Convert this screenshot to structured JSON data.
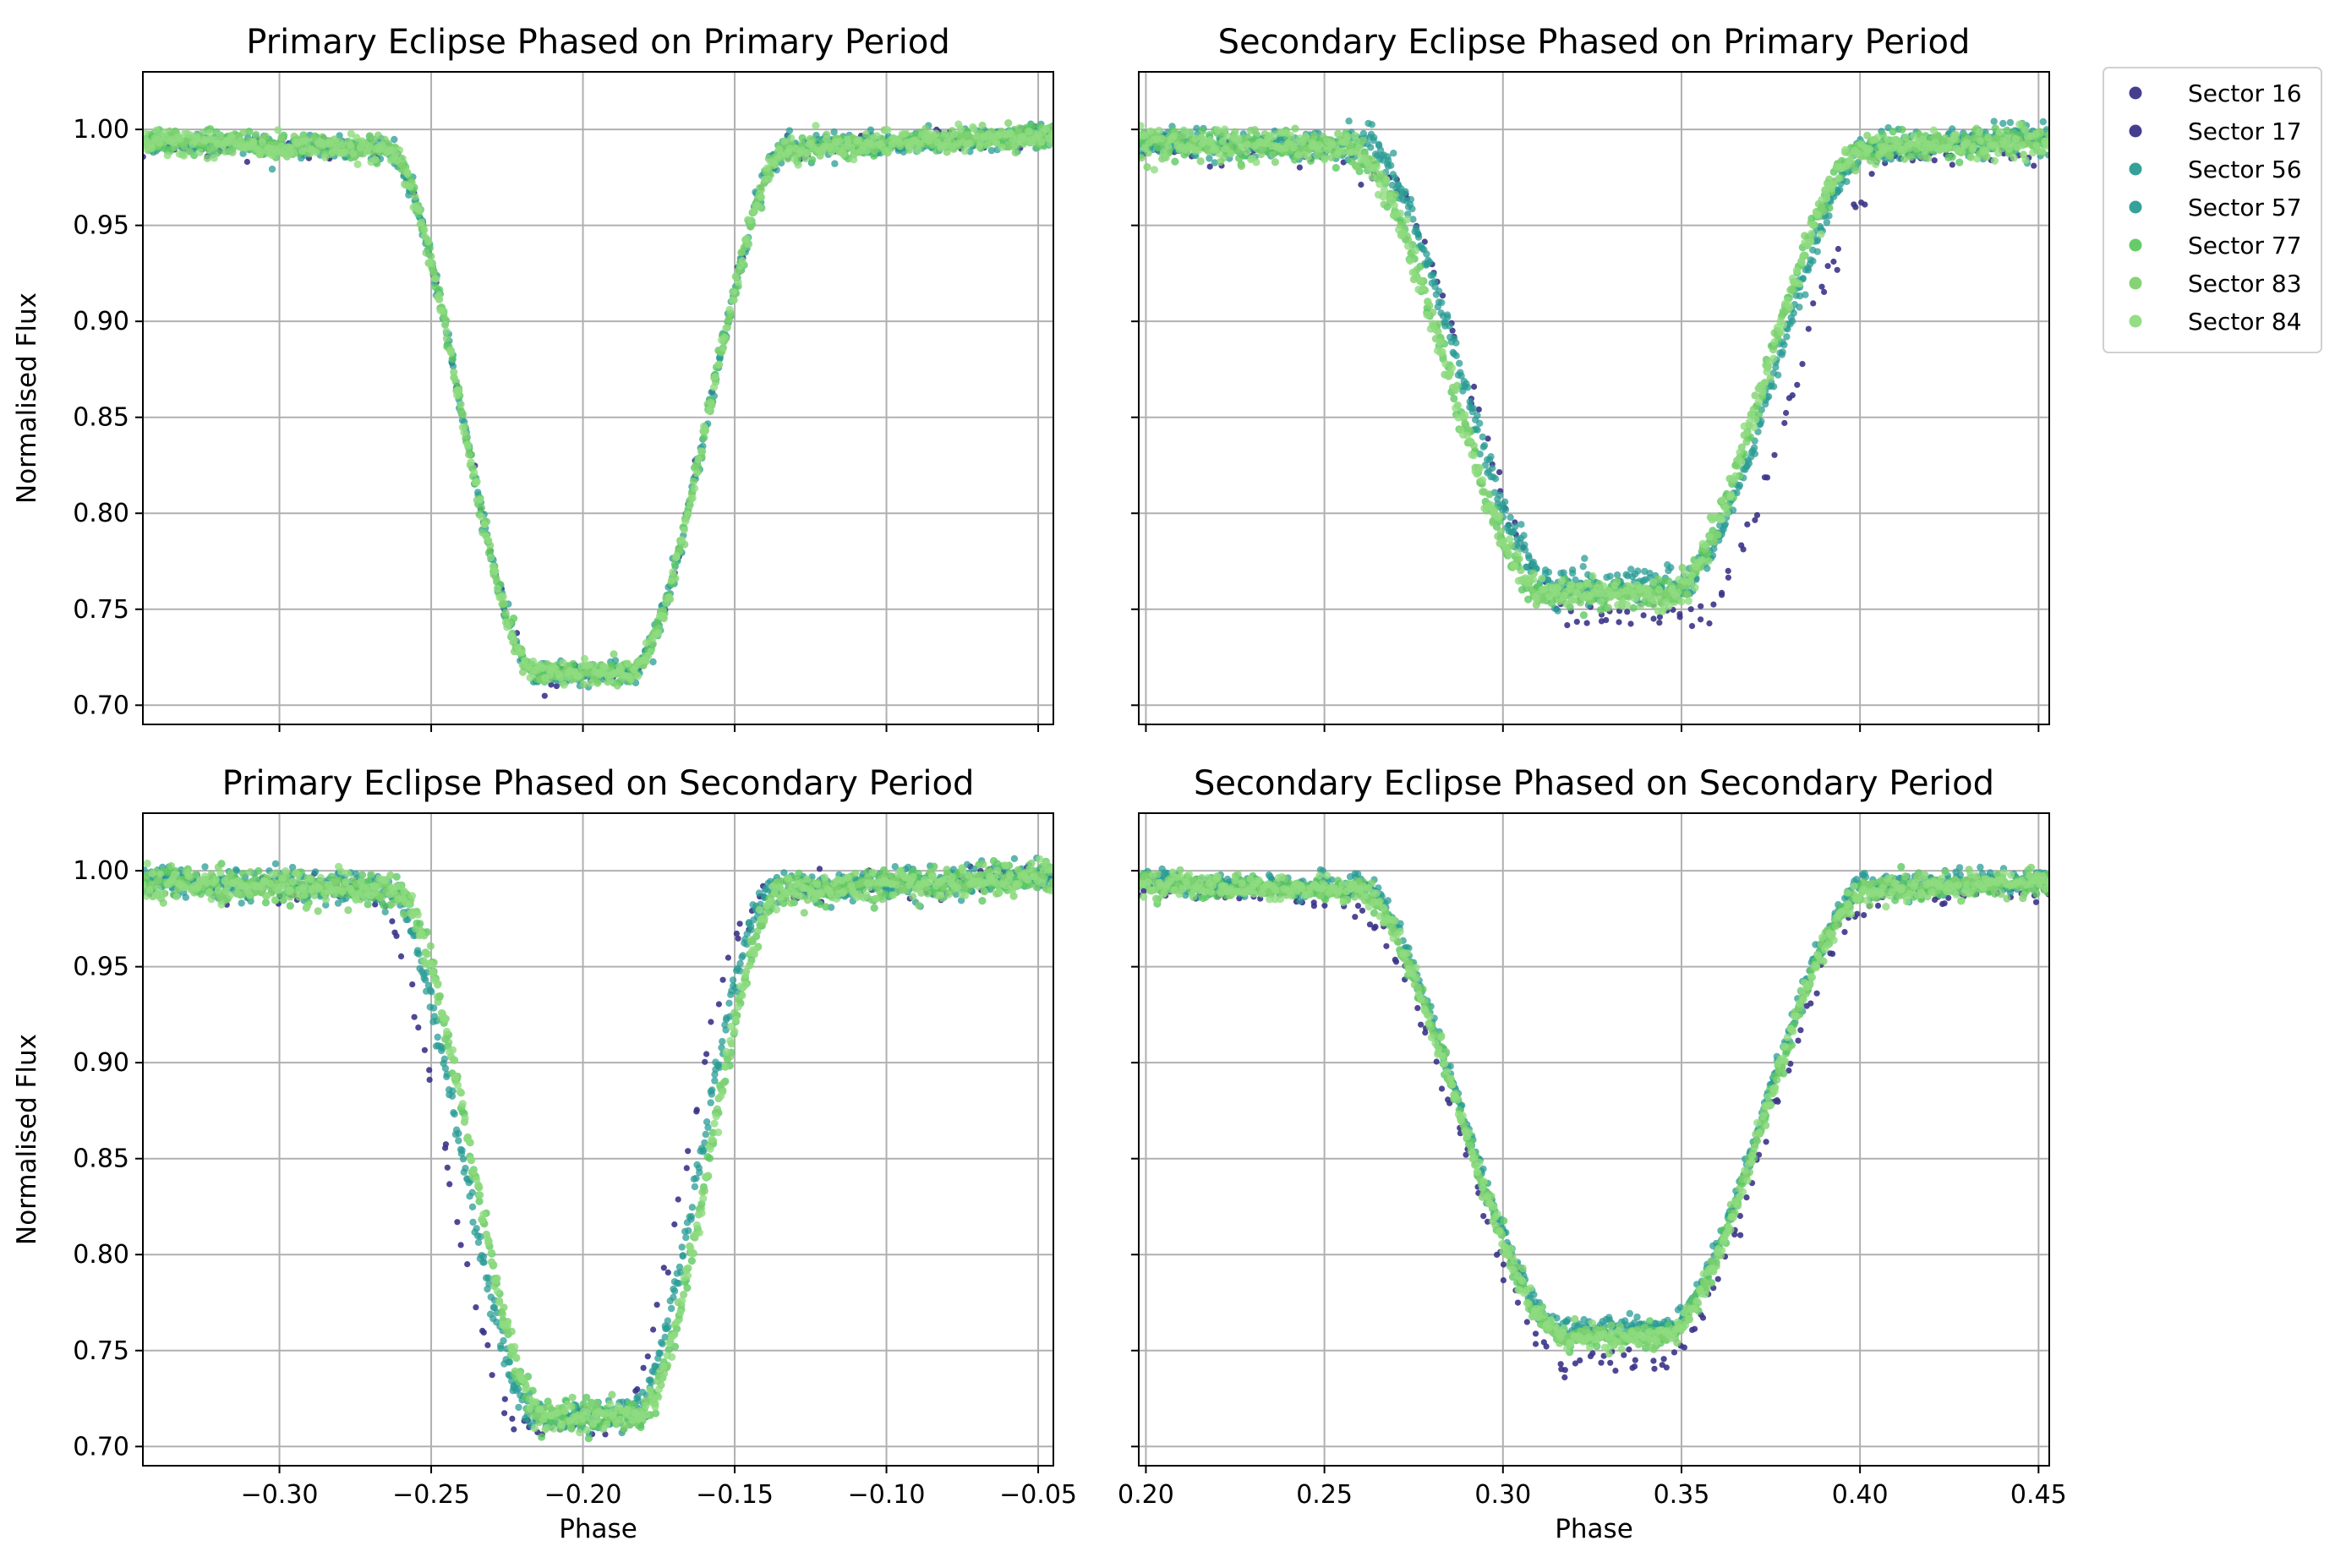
{
  "chart_data": [
    {
      "type": "scatter",
      "title": "Primary Eclipse Phased on Primary Period",
      "xlabel": "",
      "ylabel": "Normalised Flux",
      "xlim": [
        -0.345,
        -0.045
      ],
      "ylim": [
        0.69,
        1.03
      ],
      "xticks": [
        -0.3,
        -0.25,
        -0.2,
        -0.15,
        -0.1,
        -0.05
      ],
      "xtick_labels": [
        "",
        "",
        "",
        "",
        "",
        ""
      ],
      "yticks": [
        0.7,
        0.75,
        0.8,
        0.85,
        0.9,
        0.95,
        1.0
      ],
      "ytick_labels": [
        "0.70",
        "0.75",
        "0.80",
        "0.85",
        "0.90",
        "0.95",
        "1.00"
      ],
      "grid": true,
      "model": {
        "left_edge": -0.265,
        "left_bottom": -0.215,
        "right_bottom": -0.185,
        "right_edge": -0.132,
        "depth": 0.717,
        "width": 0.003,
        "skew_x": 0.0
      },
      "series_offsets": [
        {
          "dx": 0.0,
          "dy": 0.0
        },
        {
          "dx": 0.0,
          "dy": 0.0
        },
        {
          "dx": 0.0,
          "dy": 0.0
        },
        {
          "dx": 0.0,
          "dy": 0.0
        },
        {
          "dx": 0.0,
          "dy": 0.0
        },
        {
          "dx": 0.0,
          "dy": 0.0
        },
        {
          "dx": 0.0,
          "dy": 0.0
        }
      ]
    },
    {
      "type": "scatter",
      "title": "Secondary Eclipse Phased on Primary Period",
      "xlabel": "",
      "ylabel": "",
      "xlim": [
        0.198,
        0.453
      ],
      "ylim": [
        0.69,
        1.03
      ],
      "xticks": [
        0.2,
        0.25,
        0.3,
        0.35,
        0.4,
        0.45
      ],
      "xtick_labels": [
        "",
        "",
        "",
        "",
        "",
        ""
      ],
      "yticks": [
        0.7,
        0.75,
        0.8,
        0.85,
        0.9,
        0.95,
        1.0
      ],
      "ytick_labels": [
        "",
        "",
        "",
        "",
        "",
        "",
        ""
      ],
      "grid": true,
      "model": {
        "left_edge": 0.258,
        "left_bottom": 0.313,
        "right_bottom": 0.347,
        "right_edge": 0.403,
        "depth": 0.758,
        "width": 0.004,
        "skew_x": 0.0
      },
      "series_offsets": [
        {
          "dx": 0.006,
          "dy": -0.012
        },
        {
          "dx": 0.006,
          "dy": -0.012
        },
        {
          "dx": 0.002,
          "dy": 0.004
        },
        {
          "dx": 0.002,
          "dy": 0.004
        },
        {
          "dx": -0.001,
          "dy": 0.0
        },
        {
          "dx": -0.001,
          "dy": 0.0
        },
        {
          "dx": -0.001,
          "dy": 0.0
        }
      ]
    },
    {
      "type": "scatter",
      "title": "Primary Eclipse Phased on Secondary Period",
      "xlabel": "Phase",
      "ylabel": "Normalised Flux",
      "xlim": [
        -0.345,
        -0.045
      ],
      "ylim": [
        0.69,
        1.03
      ],
      "xticks": [
        -0.3,
        -0.25,
        -0.2,
        -0.15,
        -0.1,
        -0.05
      ],
      "xtick_labels": [
        "−0.30",
        "−0.25",
        "−0.20",
        "−0.15",
        "−0.10",
        "−0.05"
      ],
      "yticks": [
        0.7,
        0.75,
        0.8,
        0.85,
        0.9,
        0.95,
        1.0
      ],
      "ytick_labels": [
        "0.70",
        "0.75",
        "0.80",
        "0.85",
        "0.90",
        "0.95",
        "1.00"
      ],
      "grid": true,
      "model": {
        "left_edge": -0.263,
        "left_bottom": -0.213,
        "right_bottom": -0.183,
        "right_edge": -0.135,
        "depth": 0.716,
        "width": 0.004,
        "skew_x": 0.0
      },
      "series_offsets": [
        {
          "dx": -0.007,
          "dy": -0.004
        },
        {
          "dx": -0.007,
          "dy": -0.004
        },
        {
          "dx": -0.002,
          "dy": 0.0
        },
        {
          "dx": -0.002,
          "dy": 0.0
        },
        {
          "dx": 0.001,
          "dy": 0.0
        },
        {
          "dx": 0.001,
          "dy": 0.0
        },
        {
          "dx": 0.001,
          "dy": 0.0
        }
      ]
    },
    {
      "type": "scatter",
      "title": "Secondary Eclipse Phased on Secondary Period",
      "xlabel": "Phase",
      "ylabel": "",
      "xlim": [
        0.198,
        0.453
      ],
      "ylim": [
        0.69,
        1.03
      ],
      "xticks": [
        0.2,
        0.25,
        0.3,
        0.35,
        0.4,
        0.45
      ],
      "xtick_labels": [
        "0.20",
        "0.25",
        "0.30",
        "0.35",
        "0.40",
        "0.45"
      ],
      "yticks": [
        0.7,
        0.75,
        0.8,
        0.85,
        0.9,
        0.95,
        1.0
      ],
      "ytick_labels": [
        "",
        "",
        "",
        "",
        "",
        "",
        ""
      ],
      "grid": true,
      "model": {
        "left_edge": 0.258,
        "left_bottom": 0.318,
        "right_bottom": 0.344,
        "right_edge": 0.403,
        "depth": 0.757,
        "width": 0.003,
        "skew_x": 0.0
      },
      "series_offsets": [
        {
          "dx": 0.0,
          "dy": -0.012
        },
        {
          "dx": 0.0,
          "dy": -0.012
        },
        {
          "dx": 0.0,
          "dy": 0.004
        },
        {
          "dx": 0.0,
          "dy": 0.004
        },
        {
          "dx": 0.0,
          "dy": 0.0
        },
        {
          "dx": 0.0,
          "dy": 0.0
        },
        {
          "dx": 0.0,
          "dy": 0.0
        }
      ]
    }
  ],
  "legend": {
    "placement": "upper right, outside plots",
    "entries": [
      {
        "label": "Sector 16",
        "color": "#3b3488"
      },
      {
        "label": "Sector 17",
        "color": "#3b3488"
      },
      {
        "label": "Sector 56",
        "color": "#2a9c94"
      },
      {
        "label": "Sector 57",
        "color": "#2a9c94"
      },
      {
        "label": "Sector 77",
        "color": "#5ec962"
      },
      {
        "label": "Sector 83",
        "color": "#7fd16f"
      },
      {
        "label": "Sector 84",
        "color": "#8fdc7f"
      }
    ]
  },
  "grid_color": "#b0b0b0"
}
